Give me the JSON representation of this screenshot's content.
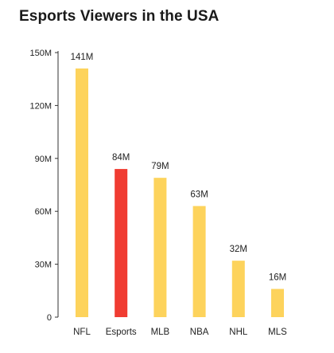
{
  "chart_data": {
    "type": "bar",
    "title": "Esports Viewers in the USA",
    "xlabel": "",
    "ylabel": "",
    "categories": [
      "NFL",
      "Esports",
      "MLB",
      "NBA",
      "NHL",
      "MLS"
    ],
    "values": [
      141,
      84,
      79,
      63,
      32,
      16
    ],
    "data_labels": [
      "141M",
      "84M",
      "79M",
      "63M",
      "32M",
      "16M"
    ],
    "ylim": [
      0,
      150
    ],
    "yticks": [
      0,
      30,
      60,
      90,
      120,
      150
    ],
    "ytick_labels": [
      "0",
      "30M",
      "60M",
      "90M",
      "120M",
      "150M"
    ],
    "grid": false,
    "bar_color": "#FDD35C",
    "highlight_category": "Esports",
    "highlight_color": "#F03C32"
  }
}
